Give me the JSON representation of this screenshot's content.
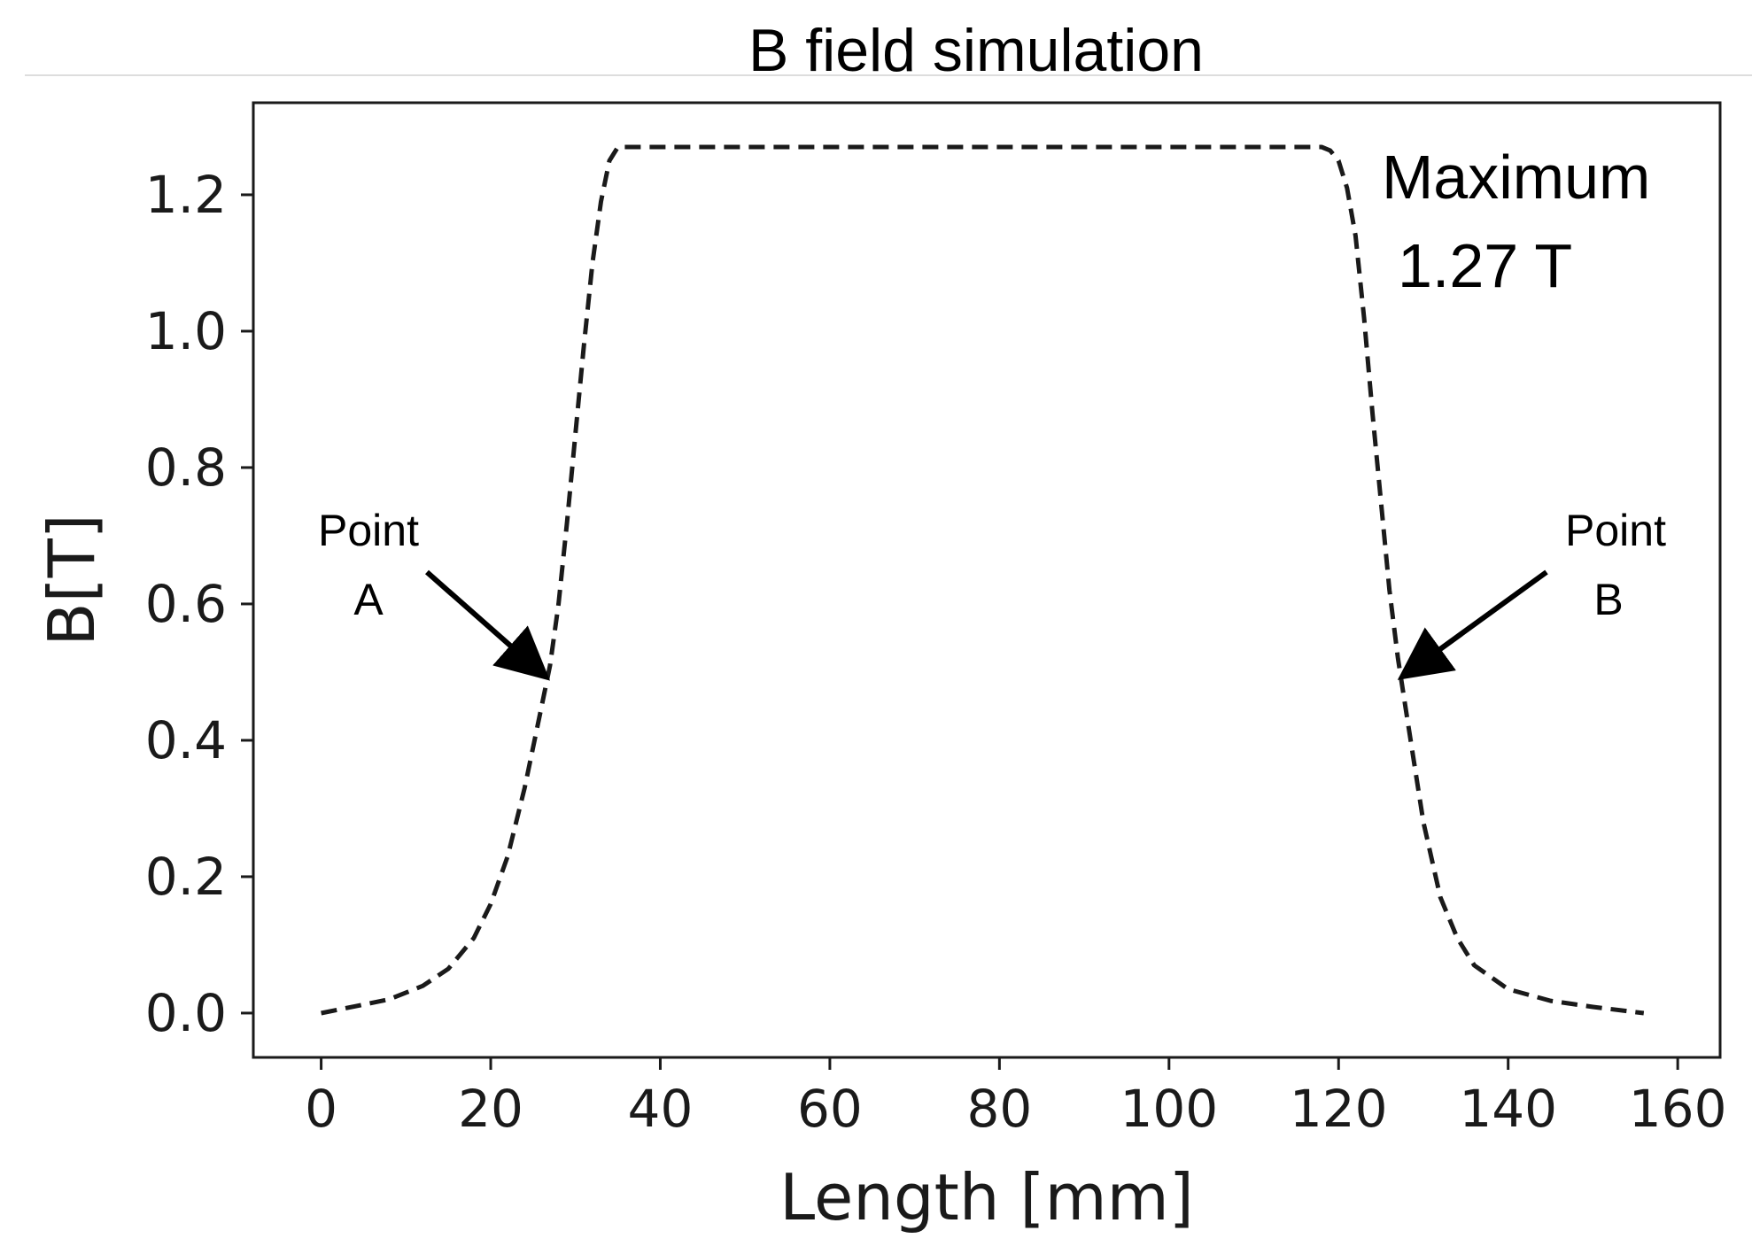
{
  "chart_data": {
    "type": "line",
    "title": "B field simulation",
    "xlabel": "Length [mm]",
    "ylabel": "B[T]",
    "xlim": [
      -8,
      165
    ],
    "ylim": [
      -0.065,
      1.335
    ],
    "xticks": [
      0,
      20,
      40,
      60,
      80,
      100,
      120,
      140,
      160
    ],
    "yticks": [
      0.0,
      0.2,
      0.4,
      0.6,
      0.8,
      1.0,
      1.2
    ],
    "x_tick_labels": [
      "0",
      "20",
      "40",
      "60",
      "80",
      "100",
      "120",
      "140",
      "160"
    ],
    "y_tick_labels": [
      "0.0",
      "0.2",
      "0.4",
      "0.6",
      "0.8",
      "1.0",
      "1.2"
    ],
    "grid": false,
    "series": [
      {
        "line_style": "dashed",
        "color": "#1a1a1a",
        "x": [
          0,
          4,
          8,
          12,
          15,
          18,
          20,
          22,
          24,
          25,
          26,
          27,
          28,
          29,
          30,
          31,
          32,
          33,
          34,
          35,
          36,
          40,
          60,
          80,
          100,
          116,
          118,
          119,
          120,
          121,
          122,
          123,
          124,
          125,
          126,
          127,
          128,
          129,
          130,
          132,
          134,
          136,
          140,
          145,
          150,
          156
        ],
        "y": [
          0.0,
          0.01,
          0.02,
          0.04,
          0.065,
          0.11,
          0.16,
          0.23,
          0.33,
          0.39,
          0.45,
          0.51,
          0.6,
          0.72,
          0.85,
          0.98,
          1.1,
          1.19,
          1.25,
          1.27,
          1.27,
          1.27,
          1.27,
          1.27,
          1.27,
          1.27,
          1.27,
          1.265,
          1.25,
          1.21,
          1.14,
          1.02,
          0.88,
          0.75,
          0.62,
          0.52,
          0.44,
          0.36,
          0.28,
          0.17,
          0.11,
          0.07,
          0.035,
          0.018,
          0.009,
          0.0
        ]
      }
    ],
    "annotations": [
      {
        "id": "maximum",
        "lines": [
          "Maximum",
          "1.27 T"
        ],
        "has_arrow": false
      },
      {
        "id": "point-a",
        "lines": [
          "Point",
          "A"
        ],
        "target": {
          "x": 26.5,
          "y": 0.49
        },
        "has_arrow": true
      },
      {
        "id": "point-b",
        "lines": [
          "Point",
          "B"
        ],
        "target": {
          "x": 127.5,
          "y": 0.49
        },
        "has_arrow": true
      }
    ]
  }
}
